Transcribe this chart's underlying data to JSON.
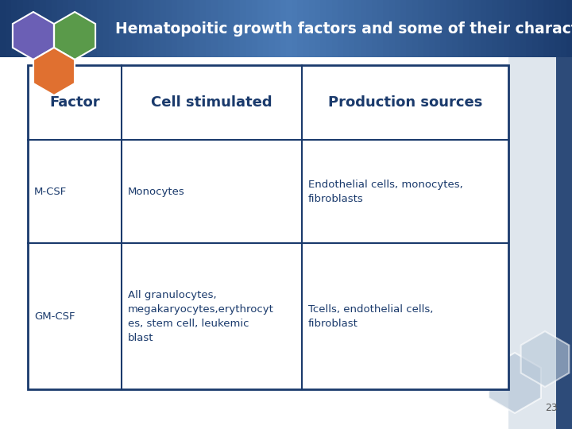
{
  "title": "Hematopoitic growth factors and some of their characteristics",
  "title_bg_dark": "#1a3a6c",
  "title_bg_mid": "#4a7ab5",
  "title_color": "#ffffff",
  "slide_bg": "#ffffff",
  "table_bg": "#ffffff",
  "table_border": "#1a3a6c",
  "header_color": "#1a3a6c",
  "cell_color": "#1a3a6c",
  "headers": [
    "Factor",
    "Cell stimulated",
    "Production sources"
  ],
  "rows": [
    [
      "M-CSF",
      "Monocytes",
      "Endothelial cells, monocytes,\nfibroblasts"
    ],
    [
      "GM-CSF",
      "All granulocytes,\nmegakaryocytes,erythrocyt\nes, stem cell, leukemic\nblast",
      "Tcells, endothelial cells,\nfibroblast"
    ]
  ],
  "hexagon_colors": [
    "#6b5fb5",
    "#5a9a4a",
    "#e07030"
  ],
  "page_number": "23",
  "accent_color": "#b8c8d8",
  "right_dark_strip": "#1a3a6c"
}
